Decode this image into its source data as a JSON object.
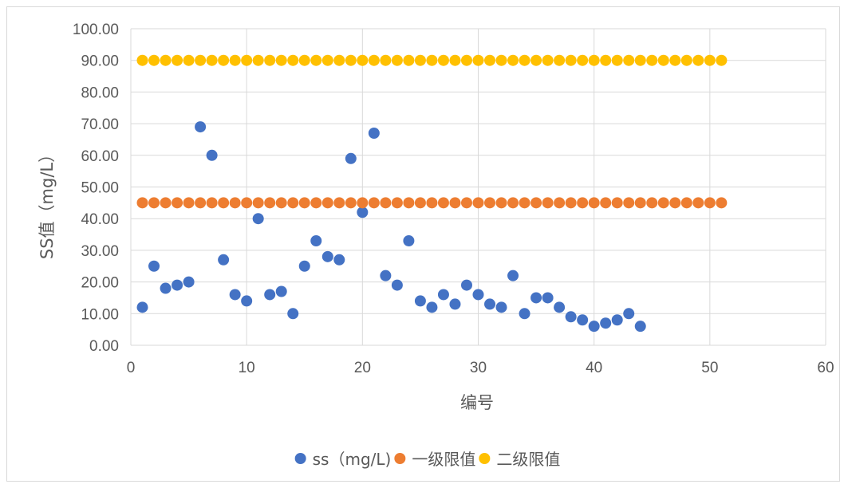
{
  "chart_data": {
    "type": "scatter",
    "xlabel": "编号",
    "ylabel": "SS值（mg/L）",
    "xlim": [
      0,
      60
    ],
    "ylim": [
      0,
      100
    ],
    "x_ticks": [
      "0",
      "10",
      "20",
      "30",
      "40",
      "50",
      "60"
    ],
    "y_ticks": [
      "0.00",
      "10.00",
      "20.00",
      "30.00",
      "40.00",
      "50.00",
      "60.00",
      "70.00",
      "80.00",
      "90.00",
      "100.00"
    ],
    "grid": true,
    "legend_position": "bottom",
    "series": [
      {
        "name": "ss（mg/L)",
        "color": "#4472C4",
        "points": [
          [
            1,
            12
          ],
          [
            2,
            25
          ],
          [
            3,
            18
          ],
          [
            4,
            19
          ],
          [
            5,
            20
          ],
          [
            6,
            69
          ],
          [
            7,
            60
          ],
          [
            8,
            27
          ],
          [
            9,
            16
          ],
          [
            10,
            14
          ],
          [
            11,
            40
          ],
          [
            12,
            16
          ],
          [
            13,
            17
          ],
          [
            14,
            10
          ],
          [
            15,
            25
          ],
          [
            16,
            33
          ],
          [
            17,
            28
          ],
          [
            18,
            27
          ],
          [
            19,
            59
          ],
          [
            20,
            42
          ],
          [
            21,
            67
          ],
          [
            22,
            22
          ],
          [
            23,
            19
          ],
          [
            24,
            33
          ],
          [
            25,
            14
          ],
          [
            26,
            12
          ],
          [
            27,
            16
          ],
          [
            28,
            13
          ],
          [
            29,
            19
          ],
          [
            30,
            16
          ],
          [
            31,
            13
          ],
          [
            32,
            12
          ],
          [
            33,
            22
          ],
          [
            34,
            10
          ],
          [
            35,
            15
          ],
          [
            36,
            15
          ],
          [
            37,
            12
          ],
          [
            38,
            9
          ],
          [
            39,
            8
          ],
          [
            40,
            6
          ],
          [
            41,
            7
          ],
          [
            42,
            8
          ],
          [
            43,
            10
          ],
          [
            44,
            6
          ]
        ]
      },
      {
        "name": "一级限值",
        "color": "#ED7D31",
        "constant": 45,
        "x_from": 1,
        "x_to": 51
      },
      {
        "name": "二级限值",
        "color": "#FFC000",
        "constant": 90,
        "x_from": 1,
        "x_to": 51
      }
    ]
  }
}
